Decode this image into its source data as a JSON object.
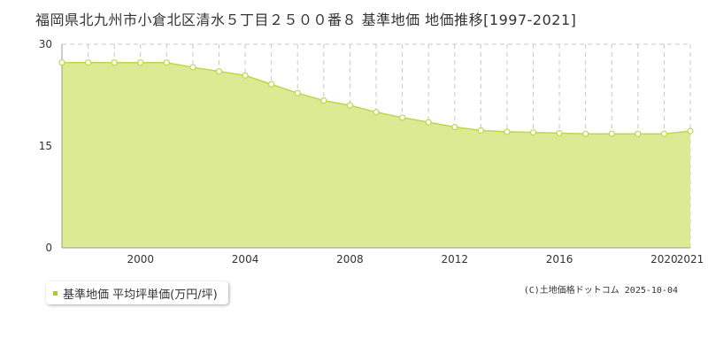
{
  "title": "福岡県北九州市小倉北区清水５丁目２５００番８ 基準地価 地価推移[1997-2021]",
  "legend_label": "基準地価 平均坪単価(万円/坪)",
  "copyright": "(C)土地価格ドットコム 2025-10-04",
  "colors": {
    "area_fill": "#dcea93",
    "line": "#b9d94a",
    "marker_fill": "#ffffff",
    "marker_stroke": "#b9d94a",
    "grid": "#c8c8c8",
    "legend_marker": "#a6cc2b"
  },
  "chart_data": {
    "type": "area",
    "x": [
      1997,
      1998,
      1999,
      2000,
      2001,
      2002,
      2003,
      2004,
      2005,
      2006,
      2007,
      2008,
      2009,
      2010,
      2011,
      2012,
      2013,
      2014,
      2015,
      2016,
      2017,
      2018,
      2019,
      2020,
      2021
    ],
    "series": [
      {
        "name": "基準地価 平均坪単価(万円/坪)",
        "values": [
          27.3,
          27.3,
          27.3,
          27.3,
          27.3,
          26.6,
          26.0,
          25.4,
          24.1,
          22.8,
          21.7,
          21.0,
          20.0,
          19.2,
          18.5,
          17.8,
          17.3,
          17.1,
          17.0,
          16.9,
          16.8,
          16.8,
          16.8,
          16.8,
          17.2
        ]
      }
    ],
    "xlim": [
      1997,
      2021
    ],
    "ylim": [
      0,
      30
    ],
    "yticks": [
      0,
      15,
      30
    ],
    "xticks": [
      2000,
      2004,
      2008,
      2012,
      2016,
      2020,
      2021
    ],
    "grid": true
  }
}
